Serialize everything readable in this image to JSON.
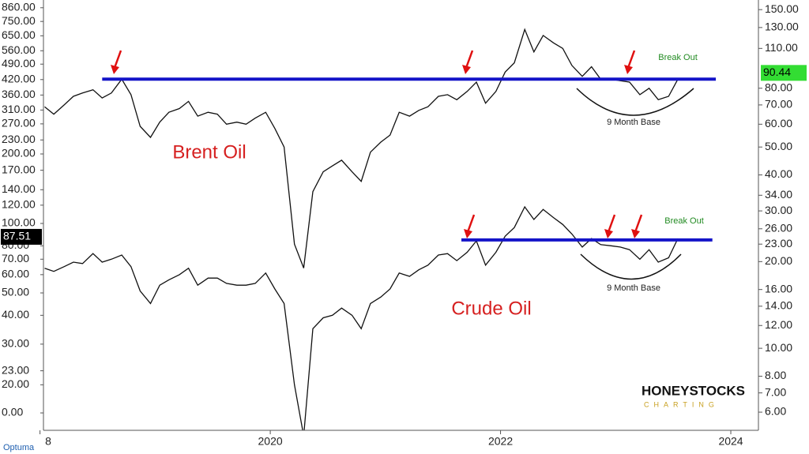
{
  "chart_data": {
    "type": "line",
    "log_scale": true,
    "grid": false,
    "xlim": [
      2018.03,
      2024.24
    ],
    "ylim": [
      12.7,
      929
    ],
    "y2lim": [
      5.19,
      162
    ],
    "xticks": [
      {
        "value": 2018,
        "label": "8"
      },
      2020,
      2022,
      2024
    ],
    "yticks": [
      {
        "value": 860,
        "label": "860.00"
      },
      {
        "value": 750,
        "label": "750.00"
      },
      {
        "value": 650,
        "label": "650.00"
      },
      {
        "value": 560,
        "label": "560.00"
      },
      {
        "value": 490,
        "label": "490.00"
      },
      {
        "value": 420,
        "label": "420.00"
      },
      {
        "value": 360,
        "label": "360.00"
      },
      {
        "value": 310,
        "label": "310.00"
      },
      {
        "value": 270,
        "label": "270.00"
      },
      {
        "value": 230,
        "label": "230.00"
      },
      {
        "value": 200,
        "label": "200.00"
      },
      {
        "value": 170,
        "label": "170.00"
      },
      {
        "value": 140,
        "label": "140.00"
      },
      {
        "value": 120,
        "label": "120.00"
      },
      {
        "value": 100,
        "label": "100.00"
      },
      {
        "value": 80,
        "label": "80.00"
      },
      {
        "value": 70,
        "label": "70.00"
      },
      {
        "value": 60,
        "label": "60.00"
      },
      {
        "value": 50,
        "label": "50.00"
      },
      {
        "value": 40,
        "label": "40.00"
      },
      {
        "value": 30,
        "label": "30.00"
      },
      {
        "value": 23,
        "label": "23.00"
      },
      {
        "value": 20,
        "label": "20.00"
      },
      {
        "value": 0,
        "label": "0.00"
      }
    ],
    "y2ticks": [
      {
        "value": 150,
        "label": "150.00"
      },
      {
        "value": 130,
        "label": "130.00"
      },
      {
        "value": 110,
        "label": "110.00"
      },
      {
        "value": 80,
        "label": "80.00"
      },
      {
        "value": 70,
        "label": "70.00"
      },
      {
        "value": 60,
        "label": "60.00"
      },
      {
        "value": 50,
        "label": "50.00"
      },
      {
        "value": 40,
        "label": "40.00"
      },
      {
        "value": 34,
        "label": "34.00"
      },
      {
        "value": 30,
        "label": "30.00"
      },
      {
        "value": 26,
        "label": "26.00"
      },
      {
        "value": 23,
        "label": "23.00"
      },
      {
        "value": 20,
        "label": "20.00"
      },
      {
        "value": 16,
        "label": "16.00"
      },
      {
        "value": 14,
        "label": "14.00"
      },
      {
        "value": 12,
        "label": "12.00"
      },
      {
        "value": 10,
        "label": "10.00"
      },
      {
        "value": 8,
        "label": "8.00"
      },
      {
        "value": 7,
        "label": "7.00"
      },
      {
        "value": 6,
        "label": "6.00"
      }
    ],
    "y_marker": {
      "value": 87.51,
      "color": "#000000"
    },
    "y2_marker": {
      "value": 90.44,
      "color": "#33dd33"
    },
    "series": [
      {
        "name": "Brent Oil",
        "axis": "y2",
        "color": "#111111",
        "x": [
          2018.04,
          2018.12,
          2018.21,
          2018.29,
          2018.37,
          2018.46,
          2018.54,
          2018.62,
          2018.71,
          2018.79,
          2018.87,
          2018.96,
          2019.04,
          2019.12,
          2019.21,
          2019.29,
          2019.37,
          2019.46,
          2019.54,
          2019.62,
          2019.71,
          2019.79,
          2019.87,
          2019.96,
          2020.04,
          2020.12,
          2020.21,
          2020.29,
          2020.37,
          2020.46,
          2020.54,
          2020.62,
          2020.71,
          2020.79,
          2020.87,
          2020.96,
          2021.04,
          2021.12,
          2021.21,
          2021.29,
          2021.37,
          2021.46,
          2021.54,
          2021.62,
          2021.71,
          2021.79,
          2021.87,
          2021.96,
          2022.04,
          2022.12,
          2022.21,
          2022.29,
          2022.37,
          2022.46,
          2022.54,
          2022.62,
          2022.71,
          2022.79,
          2022.87,
          2022.96,
          2023.04,
          2023.12,
          2023.21,
          2023.29,
          2023.37,
          2023.46,
          2023.54
        ],
        "values": [
          69,
          65,
          70,
          75,
          77,
          79,
          74,
          77,
          86,
          76,
          59,
          54,
          61,
          66,
          68,
          72,
          64,
          66,
          65,
          60,
          61,
          60,
          63,
          66,
          58,
          50,
          23,
          19,
          35,
          41,
          43,
          45,
          41,
          38,
          48,
          52,
          55,
          66,
          64,
          67,
          69,
          75,
          76,
          73,
          78,
          84,
          71,
          78,
          91,
          98,
          128,
          107,
          122,
          115,
          110,
          96,
          88,
          95,
          86,
          86,
          85,
          84,
          76,
          80,
          73,
          75,
          86
        ]
      },
      {
        "name": "Crude Oil",
        "axis": "y",
        "color": "#111111",
        "x": [
          2018.04,
          2018.12,
          2018.21,
          2018.29,
          2018.37,
          2018.46,
          2018.54,
          2018.62,
          2018.71,
          2018.79,
          2018.87,
          2018.96,
          2019.04,
          2019.12,
          2019.21,
          2019.29,
          2019.37,
          2019.46,
          2019.54,
          2019.62,
          2019.71,
          2019.79,
          2019.87,
          2019.96,
          2020.04,
          2020.12,
          2020.21,
          2020.29,
          2020.37,
          2020.46,
          2020.54,
          2020.62,
          2020.71,
          2020.79,
          2020.87,
          2020.96,
          2021.04,
          2021.12,
          2021.21,
          2021.29,
          2021.37,
          2021.46,
          2021.54,
          2021.62,
          2021.71,
          2021.79,
          2021.87,
          2021.96,
          2022.04,
          2022.12,
          2022.21,
          2022.29,
          2022.37,
          2022.46,
          2022.54,
          2022.62,
          2022.71,
          2022.79,
          2022.87,
          2022.96,
          2023.04,
          2023.12,
          2023.21,
          2023.29,
          2023.37,
          2023.46,
          2023.54
        ],
        "values": [
          64,
          62,
          65,
          68,
          67,
          74,
          68,
          70,
          73,
          65,
          51,
          45,
          54,
          57,
          60,
          64,
          54,
          58,
          58,
          55,
          54,
          54,
          55,
          61,
          52,
          45,
          20,
          12,
          35,
          39,
          40,
          43,
          40,
          35,
          45,
          48,
          52,
          61,
          59,
          63,
          66,
          73,
          74,
          69,
          75,
          84,
          66,
          75,
          88,
          96,
          118,
          104,
          115,
          106,
          99,
          90,
          79,
          86,
          81,
          80,
          79,
          77,
          70,
          77,
          68,
          71,
          86
        ]
      }
    ],
    "levels": [
      {
        "value": 86,
        "axis": "y2",
        "x": [
          2018.54,
          2023.87
        ],
        "color": "#1414c8"
      },
      {
        "value": 84.8,
        "axis": "y",
        "x": [
          2021.66,
          2023.84
        ],
        "color": "#1414c8"
      }
    ],
    "annotations": {
      "brent": "Brent Oil",
      "crude": "Crude Oil",
      "breakout_top": "Break Out",
      "breakout_bottom": "Break Out",
      "base_top": "9 Month Base",
      "base_bottom": "9 Month Base"
    },
    "logo": {
      "name": "HONEYSTOCKS",
      "tagline": "CHARTING"
    },
    "source": "Optuma"
  }
}
